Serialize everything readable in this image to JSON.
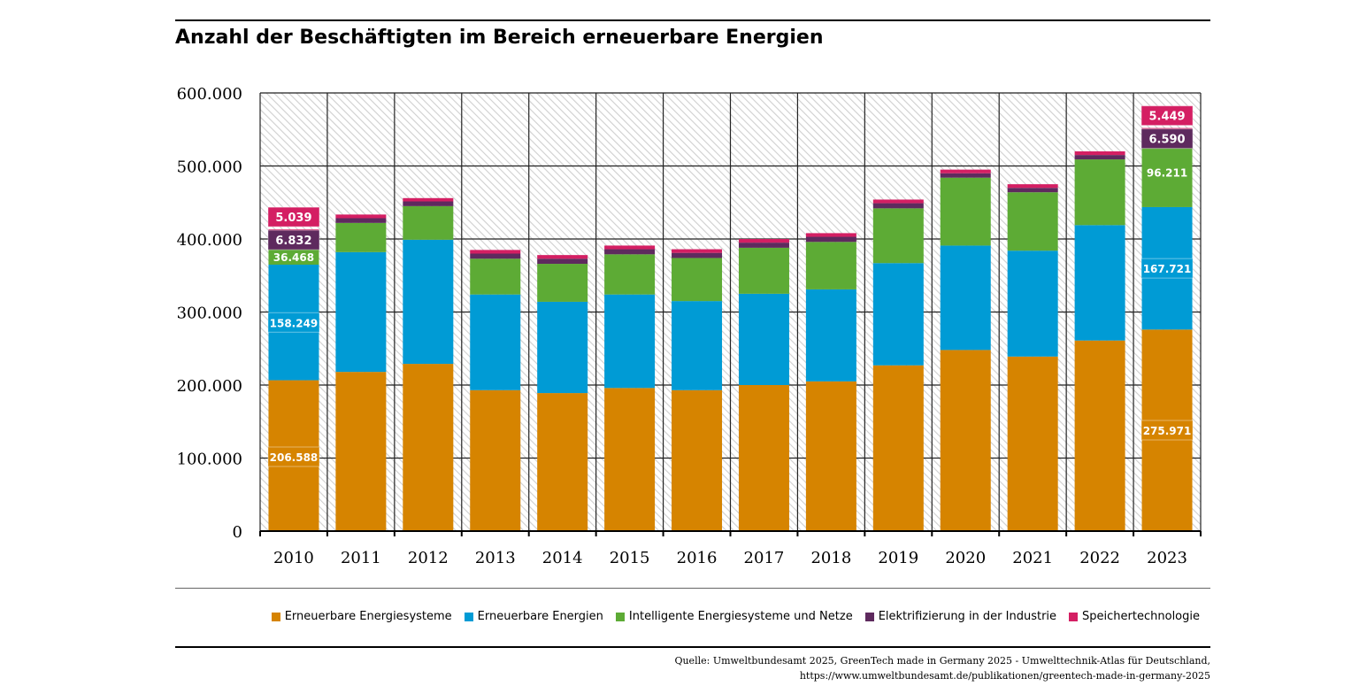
{
  "title": "Anzahl der Beschäftigten im Bereich erneuerbare Energien",
  "source": [
    "Quelle: Umweltbundesamt 2025, GreenTech made in Germany 2025 - Umwelttechnik-Atlas für Deutschland,",
    "https://www.umweltbundesamt.de/publikationen/greentech-made-in-germany-2025"
  ],
  "chart_data": {
    "type": "bar",
    "stacked": true,
    "title": "Anzahl der Beschäftigten im Bereich erneuerbare Energien",
    "xlabel": "",
    "ylabel": "",
    "ylim": [
      0,
      600000
    ],
    "yticks": [
      0,
      100000,
      200000,
      300000,
      400000,
      500000,
      600000
    ],
    "ytick_labels": [
      "0",
      "100.000",
      "200.000",
      "300.000",
      "400.000",
      "500.000",
      "600.000"
    ],
    "grid": true,
    "legend_position": "bottom-right",
    "categories": [
      "2010",
      "2011",
      "2012",
      "2013",
      "2014",
      "2015",
      "2016",
      "2017",
      "2018",
      "2019",
      "2020",
      "2021",
      "2022",
      "2023"
    ],
    "series": [
      {
        "name": "Erneuerbare Energiesysteme",
        "color": "#d68400",
        "values": [
          206588,
          218000,
          229000,
          193000,
          189000,
          196000,
          193000,
          200000,
          205000,
          227000,
          248000,
          239000,
          261000,
          275971
        ]
      },
      {
        "name": "Erneuerbare Energien",
        "color": "#009bd5",
        "values": [
          158249,
          164000,
          170000,
          131000,
          125000,
          128000,
          122000,
          125000,
          126000,
          140000,
          143000,
          145000,
          158000,
          167721
        ]
      },
      {
        "name": "Intelligente Energiesysteme und Netze",
        "color": "#5dab35",
        "values": [
          36468,
          40000,
          46000,
          49000,
          52000,
          55000,
          59000,
          63000,
          65000,
          75000,
          93000,
          80000,
          90000,
          96211
        ]
      },
      {
        "name": "Elektrifizierung in der Industrie",
        "color": "#5e2a5e",
        "values": [
          6832,
          6500,
          6500,
          7000,
          7000,
          7000,
          7000,
          7000,
          7000,
          7000,
          6000,
          6000,
          6000,
          6590
        ]
      },
      {
        "name": "Speichertechnologie",
        "color": "#d41f63",
        "values": [
          5039,
          5000,
          4500,
          5000,
          5000,
          5000,
          5000,
          5000,
          5000,
          5000,
          5000,
          5000,
          5000,
          5449
        ]
      }
    ],
    "data_labels": [
      {
        "category": "2010",
        "labels": [
          "206.588",
          "158.249",
          "36.468",
          "6.832",
          "5.039"
        ]
      },
      {
        "category": "2023",
        "labels": [
          "275.971",
          "167.721",
          "96.211",
          "6.590",
          "5.449"
        ]
      }
    ]
  }
}
